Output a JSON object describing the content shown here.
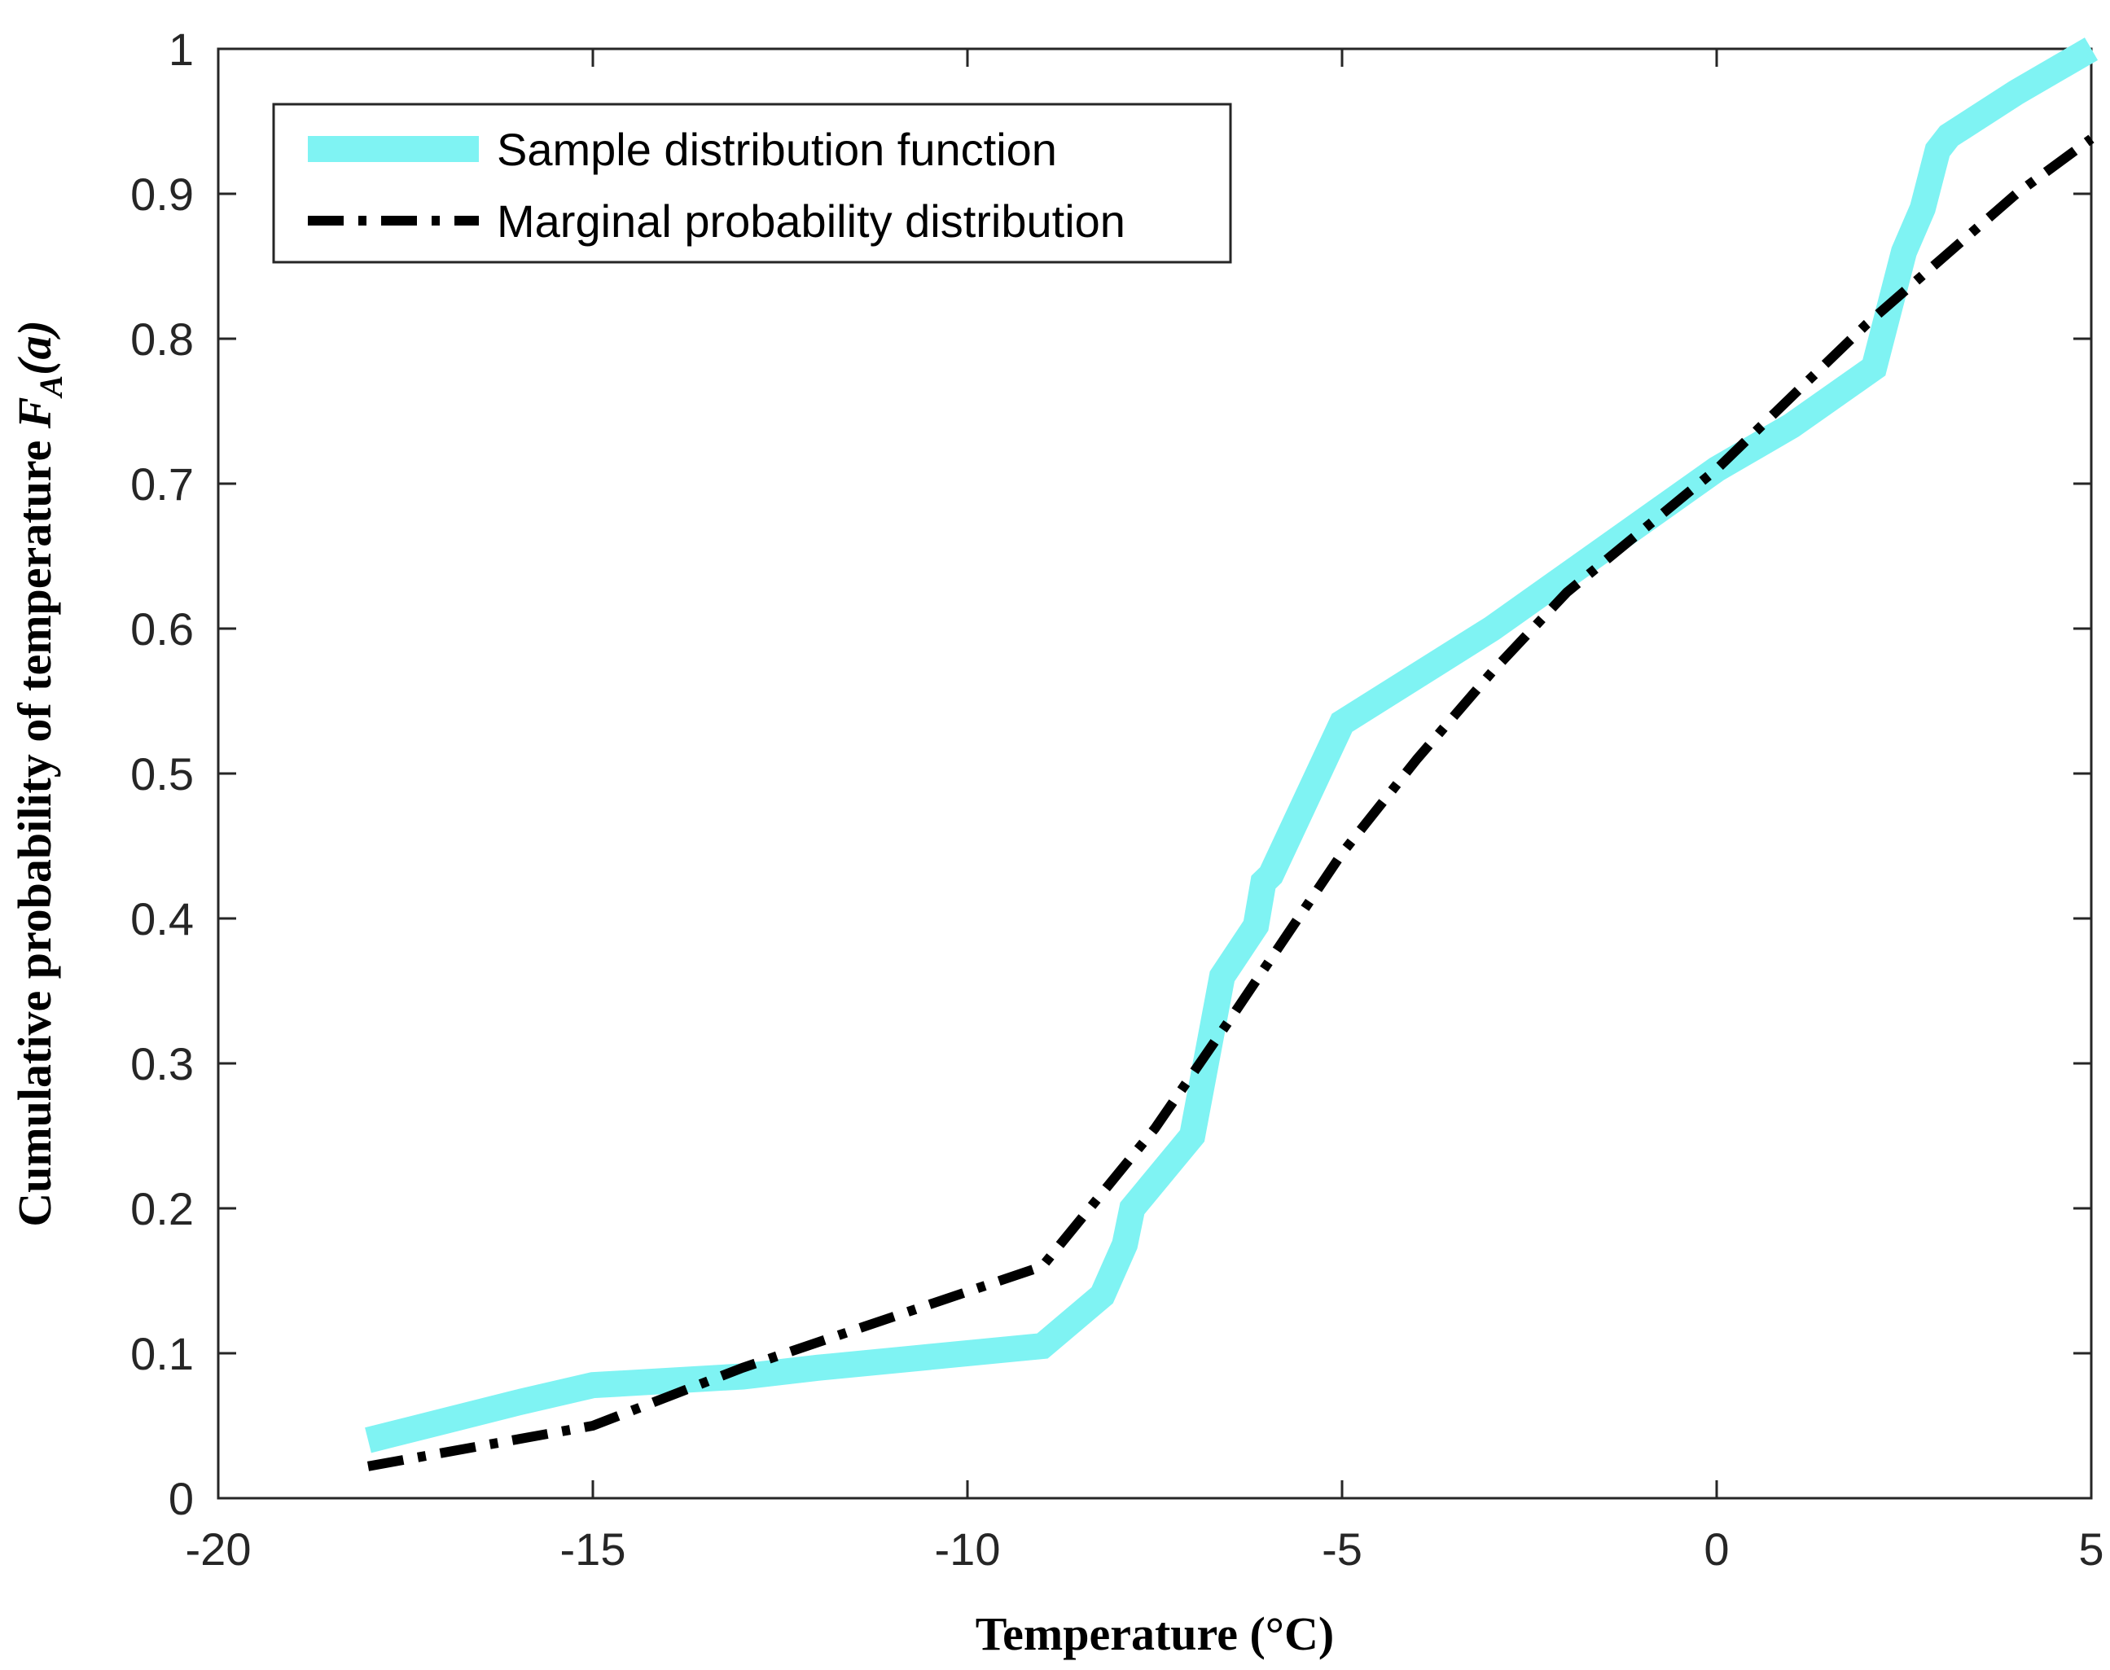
{
  "chart_data": {
    "type": "line",
    "title": "",
    "xlabel": "Temperature (°C)",
    "ylabel": {
      "prefix": "Cumulative probability of temperature ",
      "symbol": "F",
      "subscript": "A",
      "arg": "(a)"
    },
    "xlim": [
      -20,
      5
    ],
    "ylim": [
      0,
      1
    ],
    "xticks": [
      -20,
      -15,
      -10,
      -5,
      0,
      5
    ],
    "yticks": [
      0,
      0.1,
      0.2,
      0.3,
      0.4,
      0.5,
      0.6,
      0.7,
      0.8,
      0.9,
      1
    ],
    "xtick_labels": [
      "-20",
      "-15",
      "-10",
      "-5",
      "0",
      "5"
    ],
    "ytick_labels": [
      "0",
      "0.1",
      "0.2",
      "0.3",
      "0.4",
      "0.5",
      "0.6",
      "0.7",
      "0.8",
      "0.9",
      "1"
    ],
    "legend_position": "top-left",
    "series": [
      {
        "name": "Sample distribution function",
        "style": "solid-thick",
        "color": "#7ff3f3",
        "x": [
          -18,
          -17,
          -16,
          -15,
          -13,
          -12,
          -9,
          -8.2,
          -7.9,
          -7.8,
          -7,
          -6.6,
          -6.15,
          -6.05,
          -5.95,
          -5,
          -3,
          0,
          1,
          2.1,
          2.5,
          2.75,
          2.95,
          3.1,
          4,
          5
        ],
        "y": [
          0.04,
          0.053,
          0.066,
          0.078,
          0.084,
          0.09,
          0.105,
          0.14,
          0.175,
          0.2,
          0.25,
          0.36,
          0.395,
          0.425,
          0.43,
          0.535,
          0.6,
          0.71,
          0.74,
          0.78,
          0.86,
          0.89,
          0.93,
          0.94,
          0.97,
          1.0
        ]
      },
      {
        "name": "Marginal probability distribution",
        "style": "dash-dot",
        "color": "#000000",
        "x": [
          -18,
          -15,
          -13,
          -11,
          -9,
          -7.5,
          -6.5,
          -5,
          -4,
          -3,
          -2,
          0,
          1,
          2,
          3,
          4,
          5
        ],
        "y": [
          0.022,
          0.05,
          0.09,
          0.125,
          0.16,
          0.255,
          0.33,
          0.445,
          0.51,
          0.57,
          0.625,
          0.71,
          0.76,
          0.81,
          0.855,
          0.9,
          0.938
        ]
      }
    ]
  }
}
